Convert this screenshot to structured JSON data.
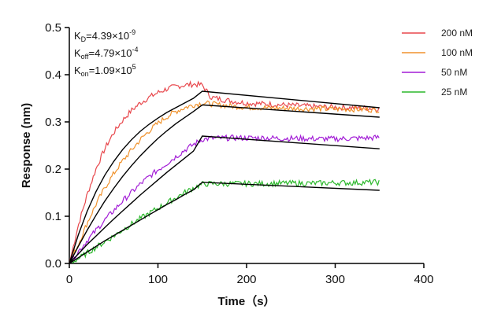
{
  "chart_data": {
    "type": "line",
    "xlabel": "Time（s）",
    "ylabel": "Response (nm)",
    "xlim": [
      0,
      400
    ],
    "ylim": [
      0,
      0.5
    ],
    "xticks": [
      "0",
      "100",
      "200",
      "300",
      "400"
    ],
    "yticks": [
      "0.0",
      "0.1",
      "0.2",
      "0.3",
      "0.4",
      "0.5"
    ],
    "grid": false,
    "legend_position": "top-right",
    "annotations": {
      "kd": {
        "label": "K",
        "sub": "D",
        "value": "=4.39×10",
        "exp": "-9"
      },
      "koff": {
        "label": "K",
        "sub": "off",
        "value": "=4.79×10",
        "exp": "-4"
      },
      "kon": {
        "label": "K",
        "sub": "on",
        "value": "=1.09×10",
        "exp": "5"
      }
    },
    "series": [
      {
        "name": "200 nM",
        "color": "#e8474c",
        "x": [
          0,
          10,
          20,
          30,
          40,
          50,
          60,
          70,
          80,
          90,
          100,
          110,
          120,
          130,
          140,
          150,
          160,
          180,
          200,
          220,
          240,
          260,
          280,
          300,
          320,
          340,
          350
        ],
        "y": [
          0.0,
          0.08,
          0.145,
          0.2,
          0.243,
          0.277,
          0.303,
          0.324,
          0.34,
          0.352,
          0.362,
          0.37,
          0.375,
          0.378,
          0.38,
          0.378,
          0.352,
          0.345,
          0.34,
          0.338,
          0.336,
          0.334,
          0.332,
          0.331,
          0.33,
          0.329,
          0.328
        ]
      },
      {
        "name": "100 nM",
        "color": "#f0922d",
        "x": [
          0,
          10,
          20,
          30,
          40,
          50,
          60,
          70,
          80,
          90,
          100,
          110,
          120,
          130,
          140,
          150,
          160,
          180,
          200,
          220,
          240,
          260,
          280,
          300,
          320,
          340,
          350
        ],
        "y": [
          0.0,
          0.04,
          0.085,
          0.125,
          0.16,
          0.19,
          0.217,
          0.24,
          0.262,
          0.281,
          0.297,
          0.311,
          0.322,
          0.33,
          0.336,
          0.34,
          0.338,
          0.334,
          0.331,
          0.33,
          0.329,
          0.328,
          0.328,
          0.327,
          0.327,
          0.326,
          0.325
        ]
      },
      {
        "name": "50 nM",
        "color": "#a21cd6",
        "x": [
          0,
          10,
          20,
          30,
          40,
          50,
          60,
          70,
          80,
          90,
          100,
          110,
          120,
          130,
          140,
          150,
          160,
          180,
          200,
          220,
          240,
          260,
          280,
          300,
          320,
          340,
          350
        ],
        "y": [
          0.0,
          0.025,
          0.048,
          0.07,
          0.092,
          0.112,
          0.132,
          0.15,
          0.168,
          0.184,
          0.198,
          0.212,
          0.226,
          0.24,
          0.252,
          0.263,
          0.265,
          0.266,
          0.266,
          0.266,
          0.265,
          0.265,
          0.264,
          0.264,
          0.265,
          0.266,
          0.267
        ]
      },
      {
        "name": "25 nM",
        "color": "#2cb82c",
        "x": [
          0,
          10,
          20,
          30,
          40,
          50,
          60,
          70,
          80,
          90,
          100,
          110,
          120,
          130,
          140,
          150,
          160,
          180,
          200,
          220,
          240,
          260,
          280,
          300,
          320,
          340,
          350
        ],
        "y": [
          0.0,
          0.01,
          0.022,
          0.034,
          0.046,
          0.058,
          0.071,
          0.083,
          0.095,
          0.106,
          0.117,
          0.128,
          0.139,
          0.15,
          0.16,
          0.168,
          0.169,
          0.169,
          0.169,
          0.169,
          0.17,
          0.17,
          0.17,
          0.171,
          0.171,
          0.172,
          0.172
        ]
      }
    ],
    "fits": [
      {
        "color": "#000000",
        "x": [
          0,
          10,
          20,
          30,
          40,
          50,
          60,
          70,
          80,
          90,
          100,
          110,
          120,
          130,
          140,
          150,
          350
        ],
        "y": [
          0.0,
          0.06,
          0.11,
          0.152,
          0.187,
          0.216,
          0.241,
          0.262,
          0.28,
          0.295,
          0.308,
          0.32,
          0.33,
          0.34,
          0.35,
          0.365,
          0.33
        ]
      },
      {
        "color": "#000000",
        "x": [
          0,
          10,
          20,
          30,
          40,
          50,
          60,
          70,
          80,
          90,
          100,
          110,
          120,
          130,
          140,
          150,
          350
        ],
        "y": [
          0.0,
          0.036,
          0.07,
          0.102,
          0.132,
          0.159,
          0.184,
          0.207,
          0.228,
          0.247,
          0.265,
          0.281,
          0.296,
          0.309,
          0.322,
          0.336,
          0.31
        ]
      },
      {
        "color": "#000000",
        "x": [
          0,
          10,
          20,
          30,
          40,
          50,
          60,
          70,
          80,
          90,
          100,
          110,
          120,
          130,
          140,
          150,
          350
        ],
        "y": [
          0.0,
          0.02,
          0.04,
          0.058,
          0.076,
          0.094,
          0.111,
          0.128,
          0.145,
          0.161,
          0.177,
          0.193,
          0.208,
          0.223,
          0.238,
          0.27,
          0.243
        ]
      },
      {
        "color": "#000000",
        "x": [
          0,
          10,
          20,
          30,
          40,
          50,
          60,
          70,
          80,
          90,
          100,
          110,
          120,
          130,
          140,
          150,
          350
        ],
        "y": [
          0.0,
          0.012,
          0.024,
          0.036,
          0.048,
          0.059,
          0.07,
          0.081,
          0.092,
          0.103,
          0.114,
          0.125,
          0.135,
          0.146,
          0.156,
          0.172,
          0.155
        ]
      }
    ]
  }
}
